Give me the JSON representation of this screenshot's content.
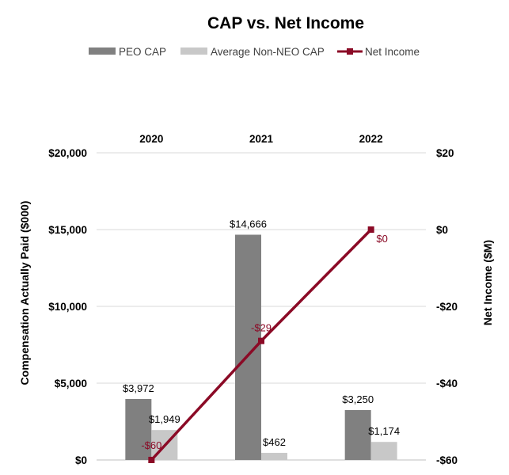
{
  "chart_data": {
    "type": "bar",
    "title": "CAP vs. Net Income",
    "categories": [
      "2020",
      "2021",
      "2022"
    ],
    "series": [
      {
        "name": "PEO CAP",
        "axis": "left",
        "kind": "bar",
        "color": "#808080",
        "values": [
          3972,
          14666,
          3250
        ],
        "labels": [
          "$3,972",
          "$14,666",
          "$3,250"
        ]
      },
      {
        "name": "Average Non-NEO CAP",
        "axis": "left",
        "kind": "bar",
        "color": "#c8c8c8",
        "values": [
          1949,
          462,
          1174
        ],
        "labels": [
          "$1,949",
          "$462",
          "$1,174"
        ]
      },
      {
        "name": "Net Income",
        "axis": "right",
        "kind": "line",
        "color": "#8b0a26",
        "values": [
          -60,
          -29,
          0
        ],
        "labels": [
          "-$60",
          "-$29",
          "$0"
        ]
      }
    ],
    "y_left": {
      "label": "Compensation Actually Paid ($000)",
      "range": [
        0,
        20000
      ],
      "ticks": [
        0,
        5000,
        10000,
        15000,
        20000
      ],
      "tick_labels": [
        "$0",
        "$5,000",
        "$10,000",
        "$15,000",
        "$20,000"
      ]
    },
    "y_right": {
      "label": "Net Income ($M)",
      "range": [
        -60,
        20
      ],
      "ticks": [
        -60,
        -40,
        -20,
        0,
        20
      ],
      "tick_labels": [
        "-$60",
        "-$40",
        "-$20",
        "$0",
        "$20"
      ]
    },
    "grid": true,
    "legend": "top-center",
    "category_axis_position": "top"
  }
}
